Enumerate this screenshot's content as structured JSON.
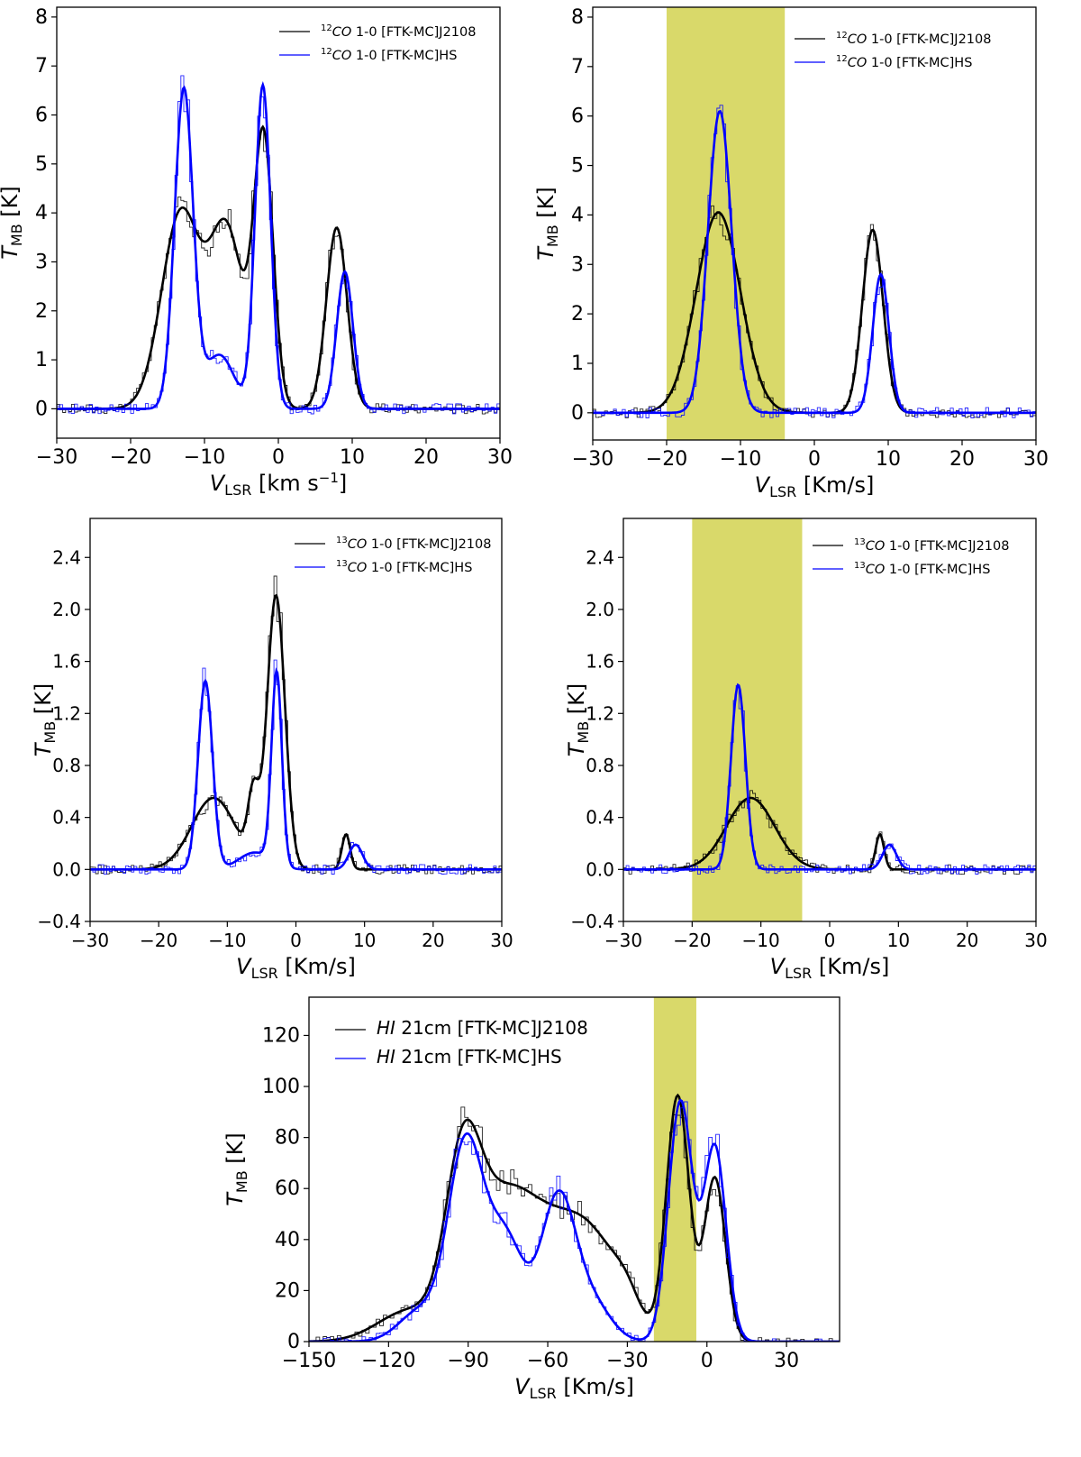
{
  "colors": {
    "observed_j2108": "#000000",
    "observed_hs": "#0000ff",
    "highlight": "#d9d96a"
  },
  "chart_data": [
    {
      "id": "co12-full",
      "type": "line",
      "xlabel": "V_LSR [km s⁻¹]",
      "xlabel_main": "V",
      "xlabel_sub": "LSR",
      "xlabel_rest": " [km s",
      "xlabel_sup": "−1",
      "xlabel_end": "]",
      "ylabel_main": "T",
      "ylabel_sub": "MB",
      "ylabel_rest": " [K]",
      "xlim": [
        -30,
        30
      ],
      "ylim": [
        -0.6,
        8.2
      ],
      "xticks": [
        -30,
        -20,
        -10,
        0,
        10,
        20,
        30
      ],
      "xtick_labels": [
        "−30",
        "−20",
        "−10",
        "0",
        "10",
        "20",
        "30"
      ],
      "yticks": [
        0,
        1,
        2,
        3,
        4,
        5,
        6,
        7,
        8
      ],
      "ytick_labels": [
        "0",
        "1",
        "2",
        "3",
        "4",
        "5",
        "6",
        "7",
        "8"
      ],
      "highlight": null,
      "legend": [
        {
          "sup": "12",
          "name": "CO",
          "rest": " 1-0 [FTK-MC]J2108",
          "color": "#000000"
        },
        {
          "sup": "12",
          "name": "CO",
          "rest": " 1-0 [FTK-MC]HS",
          "color": "#0000ff"
        }
      ],
      "series": [
        {
          "name": "J2108",
          "color": "#000000",
          "components": [
            [
              4.0,
              -13.2,
              2.6
            ],
            [
              3.6,
              -7.0,
              2.3
            ],
            [
              5.4,
              -2.0,
              1.3
            ],
            [
              3.7,
              7.9,
              1.4
            ]
          ]
        },
        {
          "name": "HS",
          "color": "#0000ff",
          "components": [
            [
              6.5,
              -12.8,
              1.25
            ],
            [
              1.1,
              -8.0,
              2.0
            ],
            [
              6.6,
              -2.1,
              1.05
            ],
            [
              2.8,
              9.0,
              1.1
            ]
          ]
        }
      ]
    },
    {
      "id": "co12-sel",
      "type": "line",
      "xlabel_main": "V",
      "xlabel_sub": "LSR",
      "xlabel_rest": " [Km/s]",
      "xlabel_sup": "",
      "xlabel_end": "",
      "ylabel_main": "T",
      "ylabel_sub": "MB",
      "ylabel_rest": " [K]",
      "xlim": [
        -30,
        30
      ],
      "ylim": [
        -0.55,
        8.2
      ],
      "xticks": [
        -30,
        -20,
        -10,
        0,
        10,
        20,
        30
      ],
      "xtick_labels": [
        "−30",
        "−20",
        "−10",
        "0",
        "10",
        "20",
        "30"
      ],
      "yticks": [
        0,
        1,
        2,
        3,
        4,
        5,
        6,
        7,
        8
      ],
      "ytick_labels": [
        "0",
        "1",
        "2",
        "3",
        "4",
        "5",
        "6",
        "7",
        "8"
      ],
      "highlight": [
        -20,
        -4
      ],
      "legend": [
        {
          "sup": "12",
          "name": "CO",
          "rest": " 1-0 [FTK-MC]J2108",
          "color": "#000000"
        },
        {
          "sup": "12",
          "name": "CO",
          "rest": " 1-0 [FTK-MC]HS",
          "color": "#0000ff"
        }
      ],
      "series": [
        {
          "name": "J2108",
          "color": "#000000",
          "components": [
            [
              4.05,
              -13.0,
              3.0
            ],
            [
              3.7,
              7.9,
              1.4
            ]
          ]
        },
        {
          "name": "HS",
          "color": "#0000ff",
          "components": [
            [
              6.1,
              -12.8,
              1.6
            ],
            [
              2.8,
              9.0,
              1.1
            ]
          ]
        }
      ]
    },
    {
      "id": "co13-full",
      "type": "line",
      "xlabel_main": "V",
      "xlabel_sub": "LSR",
      "xlabel_rest": " [Km/s]",
      "xlabel_sup": "",
      "xlabel_end": "",
      "ylabel_main": "T",
      "ylabel_sub": "MB",
      "ylabel_rest": " [K]",
      "xlim": [
        -30,
        30
      ],
      "ylim": [
        -0.4,
        2.7
      ],
      "xticks": [
        -30,
        -20,
        -10,
        0,
        10,
        20,
        30
      ],
      "xtick_labels": [
        "−30",
        "−20",
        "−10",
        "0",
        "10",
        "20",
        "30"
      ],
      "yticks": [
        -0.4,
        0.0,
        0.4,
        0.8,
        1.2,
        1.6,
        2.0,
        2.4
      ],
      "ytick_labels": [
        "−0.4",
        "0.0",
        "0.4",
        "0.8",
        "1.2",
        "1.6",
        "2.0",
        "2.4"
      ],
      "highlight": null,
      "legend": [
        {
          "sup": "13",
          "name": "CO",
          "rest": " 1-0 [FTK-MC]J2108",
          "color": "#000000"
        },
        {
          "sup": "13",
          "name": "CO",
          "rest": " 1-0 [FTK-MC]HS",
          "color": "#0000ff"
        }
      ],
      "series": [
        {
          "name": "J2108",
          "color": "#000000",
          "components": [
            [
              0.55,
              -12.0,
              3.2
            ],
            [
              0.5,
              -6.2,
              0.8
            ],
            [
              2.1,
              -2.9,
              1.3
            ],
            [
              0.27,
              7.3,
              0.6
            ]
          ]
        },
        {
          "name": "HS",
          "color": "#0000ff",
          "components": [
            [
              1.45,
              -13.2,
              1.05
            ],
            [
              0.13,
              -6.0,
              2.3
            ],
            [
              1.48,
              -2.8,
              0.75
            ],
            [
              0.19,
              8.7,
              1.0
            ]
          ]
        }
      ]
    },
    {
      "id": "co13-sel",
      "type": "line",
      "xlabel_main": "V",
      "xlabel_sub": "LSR",
      "xlabel_rest": " [Km/s]",
      "xlabel_sup": "",
      "xlabel_end": "",
      "ylabel_main": "T",
      "ylabel_sub": "MB",
      "ylabel_rest": " [K]",
      "xlim": [
        -30,
        30
      ],
      "ylim": [
        -0.4,
        2.7
      ],
      "xticks": [
        -30,
        -20,
        -10,
        0,
        10,
        20,
        30
      ],
      "xtick_labels": [
        "−30",
        "−20",
        "−10",
        "0",
        "10",
        "20",
        "30"
      ],
      "yticks": [
        -0.4,
        0.0,
        0.4,
        0.8,
        1.2,
        1.6,
        2.0,
        2.4
      ],
      "ytick_labels": [
        "−0.4",
        "0.0",
        "0.4",
        "0.8",
        "1.2",
        "1.6",
        "2.0",
        "2.4"
      ],
      "highlight": [
        -20,
        -4
      ],
      "legend": [
        {
          "sup": "13",
          "name": "CO",
          "rest": " 1-0 [FTK-MC]J2108",
          "color": "#000000"
        },
        {
          "sup": "13",
          "name": "CO",
          "rest": " 1-0 [FTK-MC]HS",
          "color": "#0000ff"
        }
      ],
      "series": [
        {
          "name": "J2108",
          "color": "#000000",
          "components": [
            [
              0.55,
              -11.5,
              3.5
            ],
            [
              0.27,
              7.3,
              0.6
            ]
          ]
        },
        {
          "name": "HS",
          "color": "#0000ff",
          "components": [
            [
              1.42,
              -13.3,
              1.05
            ],
            [
              0.19,
              8.7,
              1.0
            ]
          ]
        }
      ]
    },
    {
      "id": "hi21",
      "type": "line",
      "xlabel_main": "V",
      "xlabel_sub": "LSR",
      "xlabel_rest": " [Km/s]",
      "xlabel_sup": "",
      "xlabel_end": "",
      "ylabel_main": "T",
      "ylabel_sub": "MB",
      "ylabel_rest": " [K]",
      "xlim": [
        -150,
        50
      ],
      "ylim": [
        0,
        135
      ],
      "xticks": [
        -150,
        -120,
        -90,
        -60,
        -30,
        0,
        30
      ],
      "xtick_labels": [
        "−150",
        "−120",
        "−90",
        "−60",
        "−30",
        "0",
        "30"
      ],
      "yticks": [
        0,
        20,
        40,
        60,
        80,
        100,
        120
      ],
      "ytick_labels": [
        "0",
        "20",
        "40",
        "60",
        "80",
        "100",
        "120"
      ],
      "highlight": [
        -20,
        -4
      ],
      "legend": [
        {
          "sup": "",
          "name": "HI",
          "rest": " 21cm [FTK-MC]J2108",
          "color": "#000000"
        },
        {
          "sup": "",
          "name": "HI",
          "rest": " 21cm [FTK-MC]HS",
          "color": "#0000ff"
        }
      ],
      "series": [
        {
          "name": "J2108",
          "color": "#000000",
          "components": [
            [
              58,
              -92,
              6.5
            ],
            [
              52,
              -77,
              12
            ],
            [
              35,
              -55,
              12
            ],
            [
              24,
              -40,
              10
            ],
            [
              8,
              -30,
              5
            ],
            [
              96,
              -11,
              4.3
            ],
            [
              64,
              3,
              4.0
            ],
            [
              12,
              -112,
              12
            ]
          ]
        },
        {
          "name": "HS",
          "color": "#0000ff",
          "components": [
            [
              76,
              -91,
              6.5
            ],
            [
              40,
              -76,
              7
            ],
            [
              56,
              -56,
              6.5
            ],
            [
              14,
              -43,
              7
            ],
            [
              94,
              -10,
              4.5
            ],
            [
              76,
              3,
              4.2
            ],
            [
              12,
              -108,
              8
            ]
          ]
        }
      ]
    }
  ]
}
